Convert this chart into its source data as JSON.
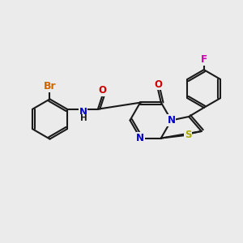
{
  "bg": "#ebebeb",
  "bond_color": "#1a1a1a",
  "bond_lw": 1.5,
  "atom_colors": {
    "Br": "#cc6600",
    "F": "#cc00aa",
    "N": "#0000cc",
    "S": "#aaaa00",
    "O": "#cc0000",
    "C": "#1a1a1a",
    "H": "#1a1a1a"
  },
  "font_size": 8.5
}
